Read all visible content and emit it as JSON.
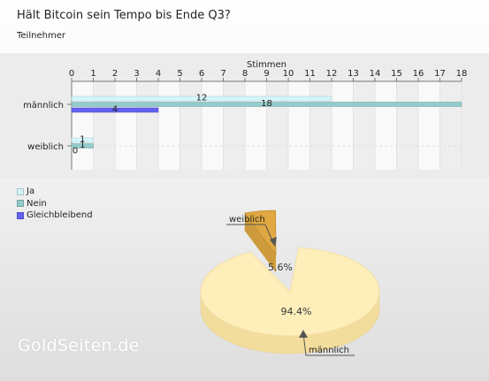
{
  "title": "Hält Bitcoin sein Tempo bis Ende Q3?",
  "subtitle": "Teilnehmer",
  "watermark": "GoldSeiten.de",
  "chart_data": [
    {
      "type": "bar",
      "orientation": "horizontal",
      "xlabel": "Stimmen",
      "xlim": [
        0,
        18
      ],
      "ticks": [
        0,
        1,
        2,
        3,
        4,
        5,
        6,
        7,
        8,
        9,
        10,
        11,
        12,
        13,
        14,
        15,
        16,
        17,
        18
      ],
      "categories": [
        "männlich",
        "weiblich"
      ],
      "series": [
        {
          "name": "Ja",
          "color": "#d4f6fb",
          "values": [
            12,
            1
          ]
        },
        {
          "name": "Nein",
          "color": "#94cbcb",
          "values": [
            18,
            1
          ]
        },
        {
          "name": "Gleichbleibend",
          "color": "#6262f0",
          "values": [
            4,
            0
          ]
        }
      ],
      "legend_position": "bottom-left"
    },
    {
      "type": "pie",
      "slices": [
        {
          "label": "männlich",
          "value": 94.4,
          "display": "94.4%",
          "color": "#fdeeba"
        },
        {
          "label": "weiblich",
          "value": 5.6,
          "display": "5.6%",
          "color": "#e0a841"
        }
      ]
    }
  ]
}
